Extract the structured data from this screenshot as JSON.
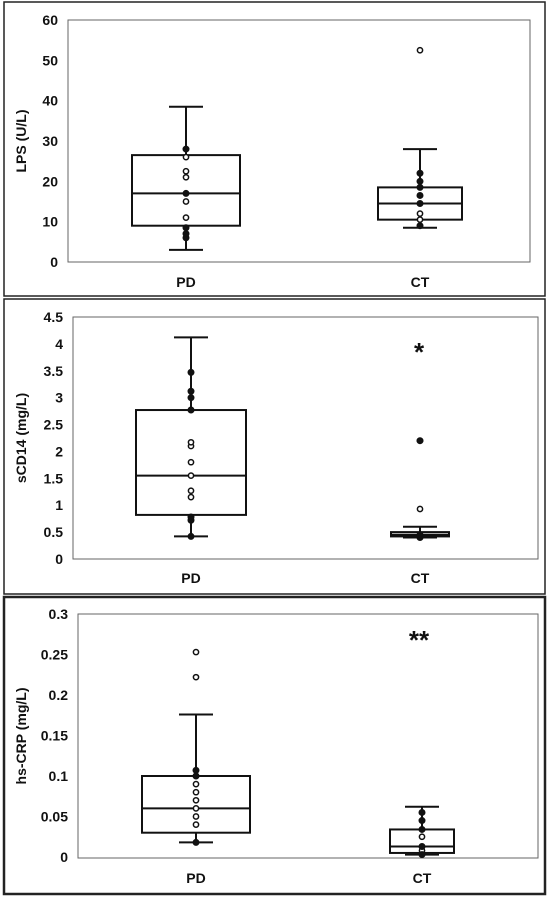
{
  "chart_data": [
    {
      "type": "box",
      "ylabel": "LPS (U/L)",
      "ylim": [
        0,
        60
      ],
      "yticks": [
        "0",
        "10",
        "20",
        "30",
        "40",
        "50",
        "60"
      ],
      "tick_values": [
        0,
        10,
        20,
        30,
        40,
        50,
        60
      ],
      "categories": [
        "PD",
        "CT"
      ],
      "boxes": [
        {
          "category": "PD",
          "whisker_low": 3,
          "q1": 9,
          "median": 17,
          "q3": 26.5,
          "whisker_high": 38.5,
          "filled_points": [
            6,
            7,
            8.5,
            17,
            28
          ],
          "open_points": [
            11,
            15,
            21,
            22.5,
            26
          ]
        },
        {
          "category": "CT",
          "whisker_low": 8.5,
          "q1": 10.5,
          "median": 14.5,
          "q3": 18.5,
          "whisker_high": 28,
          "filled_points": [
            9,
            14.5,
            16.5,
            18.5,
            20,
            22
          ],
          "open_points": [
            10.5,
            12,
            52.5
          ]
        }
      ],
      "annotation": ""
    },
    {
      "type": "box",
      "ylabel": "sCD14 (mg/L)",
      "ylim": [
        0,
        4.5
      ],
      "yticks": [
        "0",
        "0.5",
        "1",
        "1.5",
        "2",
        "2.5",
        "3",
        "3.5",
        "4",
        "4.5"
      ],
      "tick_values": [
        0,
        0.5,
        1,
        1.5,
        2,
        2.5,
        3,
        3.5,
        4,
        4.5
      ],
      "categories": [
        "PD",
        "CT"
      ],
      "boxes": [
        {
          "category": "PD",
          "whisker_low": 0.42,
          "q1": 0.82,
          "median": 1.55,
          "q3": 2.77,
          "whisker_high": 4.12,
          "filled_points": [
            0.42,
            0.72,
            0.78,
            2.77,
            3.0,
            3.12,
            3.47
          ],
          "open_points": [
            1.15,
            1.27,
            1.55,
            1.8,
            2.1,
            2.17
          ]
        },
        {
          "category": "CT",
          "whisker_low": 0.4,
          "q1": 0.42,
          "median": 0.45,
          "q3": 0.5,
          "whisker_high": 0.6,
          "filled_points": [
            0.4,
            0.42,
            0.45,
            2.2
          ],
          "open_points": [
            0.93,
            2.2
          ]
        }
      ],
      "annotation": "*"
    },
    {
      "type": "box",
      "ylabel": "hs-CRP (mg/L)",
      "ylim": [
        0,
        0.3
      ],
      "yticks": [
        "0",
        "0.05",
        "0.1",
        "0.15",
        "0.2",
        "0.25",
        "0.3"
      ],
      "tick_values": [
        0,
        0.05,
        0.1,
        0.15,
        0.2,
        0.25,
        0.3
      ],
      "categories": [
        "PD",
        "CT"
      ],
      "boxes": [
        {
          "category": "PD",
          "whisker_low": 0.018,
          "q1": 0.03,
          "median": 0.06,
          "q3": 0.1,
          "whisker_high": 0.176,
          "filled_points": [
            0.018,
            0.1,
            0.107
          ],
          "open_points": [
            0.04,
            0.05,
            0.06,
            0.07,
            0.08,
            0.09,
            0.222,
            0.253
          ]
        },
        {
          "category": "CT",
          "whisker_low": 0.003,
          "q1": 0.005,
          "median": 0.013,
          "q3": 0.034,
          "whisker_high": 0.062,
          "filled_points": [
            0.003,
            0.013,
            0.034,
            0.045,
            0.055
          ],
          "open_points": [
            0.008,
            0.025
          ]
        }
      ],
      "annotation": "**"
    }
  ]
}
